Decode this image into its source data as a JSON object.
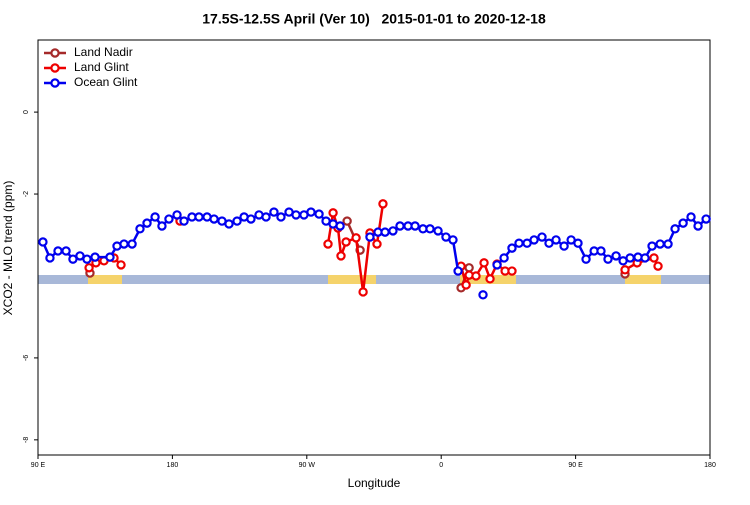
{
  "chart_data": {
    "type": "line",
    "title": "17.5S-12.5S April (Ver 10)   2015-01-01 to 2020-12-18",
    "x_label": "Longitude",
    "y_label": "XCO2 - MLO trend (ppm)",
    "xlim": [
      90,
      540
    ],
    "ylim": [
      -8.37,
      1.76
    ],
    "xticks": [
      {
        "value": 90,
        "label": "90 E"
      },
      180,
      {
        "value": 270,
        "label": "90 W"
      },
      {
        "value": 360,
        "label": "0"
      },
      {
        "value": 450,
        "label": "90 E"
      },
      {
        "value": 540,
        "label": "180"
      }
    ],
    "yticks": [
      -8,
      -6,
      -2,
      0
    ],
    "legend": "top-left",
    "series": [
      {
        "name": "Land Nadir",
        "color": "#a52a2a",
        "x": [
          124.8,
          null,
          297.0,
          305.7,
          null,
          373.3,
          378.7,
          null,
          483.1
        ],
        "values": [
          -3.93,
          null,
          -2.66,
          -3.37,
          null,
          -4.29,
          -3.8,
          null,
          -3.95
        ]
      },
      {
        "name": "Land Glint",
        "color": "#ee0000",
        "x": [
          124.2,
          128.8,
          134.2,
          140.9,
          145.6,
          null,
          185.1,
          null,
          284.2,
          287.6,
          290.9,
          292.9,
          296.3,
          303.0,
          307.7,
          312.3,
          317.0,
          321.0,
          null,
          373.3,
          376.7,
          378.7,
          383.3,
          388.7,
          392.7,
          397.4,
          402.8,
          407.4,
          null,
          483.1,
          491.2,
          502.5,
          505.2
        ],
        "values": [
          -3.8,
          -3.68,
          -3.63,
          -3.56,
          -3.73,
          null,
          -2.66,
          null,
          -3.22,
          -2.46,
          -2.83,
          -3.51,
          -3.17,
          -3.07,
          -4.39,
          -2.95,
          -3.22,
          -2.24,
          null,
          -3.76,
          -4.22,
          -3.98,
          -4.0,
          -3.68,
          -4.07,
          -3.71,
          -3.88,
          -3.88,
          null,
          -3.85,
          -3.68,
          -3.56,
          -3.76
        ]
      },
      {
        "name": "Ocean Glint",
        "color": "#0000ee",
        "x": [
          93.3,
          98.0,
          103.4,
          108.8,
          113.4,
          118.1,
          122.8,
          128.2,
          138.2,
          142.9,
          147.6,
          153.0,
          158.3,
          163.0,
          168.4,
          173.0,
          177.7,
          183.1,
          187.8,
          193.1,
          197.8,
          203.2,
          207.9,
          213.2,
          217.9,
          223.3,
          228.0,
          232.6,
          238.0,
          242.7,
          248.0,
          252.7,
          258.1,
          262.8,
          268.1,
          272.8,
          278.2,
          282.9,
          287.6,
          292.3,
          null,
          312.3,
          317.7,
          322.4,
          327.7,
          332.4,
          337.8,
          342.5,
          347.8,
          352.5,
          357.9,
          363.2,
          367.9,
          371.3,
          null,
          388.0,
          null,
          397.4,
          402.1,
          407.4,
          412.1,
          417.5,
          422.2,
          427.5,
          432.2,
          436.9,
          442.3,
          447.0,
          451.6,
          457.0,
          462.4,
          467.0,
          471.7,
          477.1,
          481.8,
          486.5,
          491.8,
          496.5,
          501.2,
          506.6,
          511.9,
          516.6,
          522.0,
          527.3,
          532.0,
          537.4
        ],
        "values": [
          -3.17,
          -3.56,
          -3.39,
          -3.39,
          -3.59,
          -3.51,
          -3.59,
          -3.54,
          -3.54,
          -3.27,
          -3.22,
          -3.22,
          -2.85,
          -2.71,
          -2.56,
          -2.78,
          -2.61,
          -2.51,
          -2.66,
          -2.56,
          -2.56,
          -2.56,
          -2.61,
          -2.66,
          -2.73,
          -2.66,
          -2.56,
          -2.61,
          -2.51,
          -2.56,
          -2.44,
          -2.56,
          -2.44,
          -2.51,
          -2.51,
          -2.44,
          -2.49,
          -2.66,
          -2.73,
          -2.78,
          null,
          -3.05,
          -2.93,
          -2.93,
          -2.9,
          -2.78,
          -2.78,
          -2.78,
          -2.85,
          -2.85,
          -2.9,
          -3.05,
          -3.12,
          -3.88,
          null,
          -4.46,
          null,
          -3.73,
          -3.56,
          -3.32,
          -3.2,
          -3.2,
          -3.12,
          -3.05,
          -3.2,
          -3.12,
          -3.27,
          -3.12,
          -3.2,
          -3.59,
          -3.39,
          -3.39,
          -3.59,
          -3.51,
          -3.63,
          -3.56,
          -3.54,
          -3.56,
          -3.27,
          -3.22,
          -3.22,
          -2.85,
          -2.71,
          -2.56,
          -2.78,
          -2.61
        ]
      }
    ]
  }
}
